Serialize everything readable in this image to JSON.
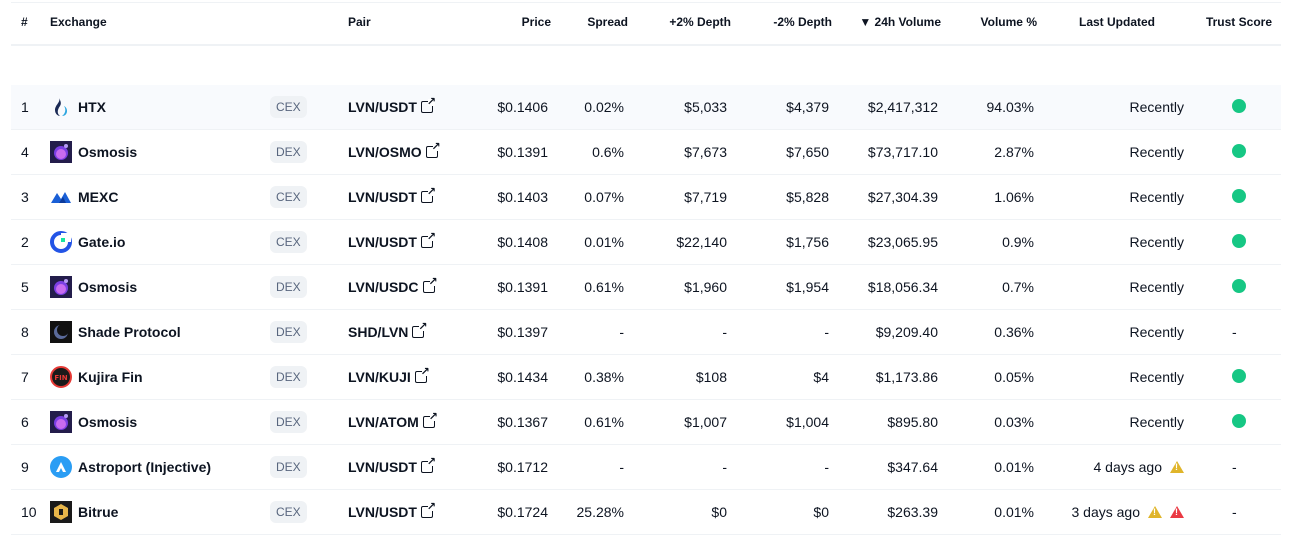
{
  "headers": {
    "rank": "#",
    "exchange": "Exchange",
    "pair": "Pair",
    "price": "Price",
    "spread": "Spread",
    "depth_plus": "+2% Depth",
    "depth_minus": "-2% Depth",
    "volume": "▼ 24h Volume",
    "volume_pct": "Volume %",
    "last_updated": "Last Updated",
    "trust": "Trust Score"
  },
  "colors": {
    "trust_green": "#16c784",
    "warning_yellow": "#e0b52a",
    "warning_red": "#ea3943"
  },
  "rows": [
    {
      "rank": "1",
      "exchange": "HTX",
      "logo": "htx-logo",
      "type": "CEX",
      "pair": "LVN/USDT",
      "price": "$0.1406",
      "spread": "0.02%",
      "depth_plus": "$5,033",
      "depth_minus": "$4,379",
      "volume": "$2,417,312",
      "volume_pct": "94.03%",
      "updated": "Recently",
      "trust": "green",
      "warnings": []
    },
    {
      "rank": "4",
      "exchange": "Osmosis",
      "logo": "osmosis-logo",
      "type": "DEX",
      "pair": "LVN/OSMO",
      "price": "$0.1391",
      "spread": "0.6%",
      "depth_plus": "$7,673",
      "depth_minus": "$7,650",
      "volume": "$73,717.10",
      "volume_pct": "2.87%",
      "updated": "Recently",
      "trust": "green",
      "warnings": []
    },
    {
      "rank": "3",
      "exchange": "MEXC",
      "logo": "mexc-logo",
      "type": "CEX",
      "pair": "LVN/USDT",
      "price": "$0.1403",
      "spread": "0.07%",
      "depth_plus": "$7,719",
      "depth_minus": "$5,828",
      "volume": "$27,304.39",
      "volume_pct": "1.06%",
      "updated": "Recently",
      "trust": "green",
      "warnings": []
    },
    {
      "rank": "2",
      "exchange": "Gate.io",
      "logo": "gate-logo",
      "type": "CEX",
      "pair": "LVN/USDT",
      "price": "$0.1408",
      "spread": "0.01%",
      "depth_plus": "$22,140",
      "depth_minus": "$1,756",
      "volume": "$23,065.95",
      "volume_pct": "0.9%",
      "updated": "Recently",
      "trust": "green",
      "warnings": []
    },
    {
      "rank": "5",
      "exchange": "Osmosis",
      "logo": "osmosis-logo",
      "type": "DEX",
      "pair": "LVN/USDC",
      "price": "$0.1391",
      "spread": "0.61%",
      "depth_plus": "$1,960",
      "depth_minus": "$1,954",
      "volume": "$18,056.34",
      "volume_pct": "0.7%",
      "updated": "Recently",
      "trust": "green",
      "warnings": []
    },
    {
      "rank": "8",
      "exchange": "Shade Protocol",
      "logo": "shade-logo",
      "type": "DEX",
      "pair": "SHD/LVN",
      "price": "$0.1397",
      "spread": "-",
      "depth_plus": "-",
      "depth_minus": "-",
      "volume": "$9,209.40",
      "volume_pct": "0.36%",
      "updated": "Recently",
      "trust": "-",
      "warnings": []
    },
    {
      "rank": "7",
      "exchange": "Kujira Fin",
      "logo": "kujira-logo",
      "type": "DEX",
      "pair": "LVN/KUJI",
      "price": "$0.1434",
      "spread": "0.38%",
      "depth_plus": "$108",
      "depth_minus": "$4",
      "volume": "$1,173.86",
      "volume_pct": "0.05%",
      "updated": "Recently",
      "trust": "green",
      "warnings": []
    },
    {
      "rank": "6",
      "exchange": "Osmosis",
      "logo": "osmosis-logo",
      "type": "DEX",
      "pair": "LVN/ATOM",
      "price": "$0.1367",
      "spread": "0.61%",
      "depth_plus": "$1,007",
      "depth_minus": "$1,004",
      "volume": "$895.80",
      "volume_pct": "0.03%",
      "updated": "Recently",
      "trust": "green",
      "warnings": []
    },
    {
      "rank": "9",
      "exchange": "Astroport (Injective)",
      "logo": "astroport-logo",
      "type": "DEX",
      "pair": "LVN/USDT",
      "price": "$0.1712",
      "spread": "-",
      "depth_plus": "-",
      "depth_minus": "-",
      "volume": "$347.64",
      "volume_pct": "0.01%",
      "updated": "4 days ago",
      "trust": "-",
      "warnings": [
        "yellow"
      ]
    },
    {
      "rank": "10",
      "exchange": "Bitrue",
      "logo": "bitrue-logo",
      "type": "CEX",
      "pair": "LVN/USDT",
      "price": "$0.1724",
      "spread": "25.28%",
      "depth_plus": "$0",
      "depth_minus": "$0",
      "volume": "$263.39",
      "volume_pct": "0.01%",
      "updated": "3 days ago",
      "trust": "-",
      "warnings": [
        "yellow",
        "red"
      ]
    }
  ]
}
